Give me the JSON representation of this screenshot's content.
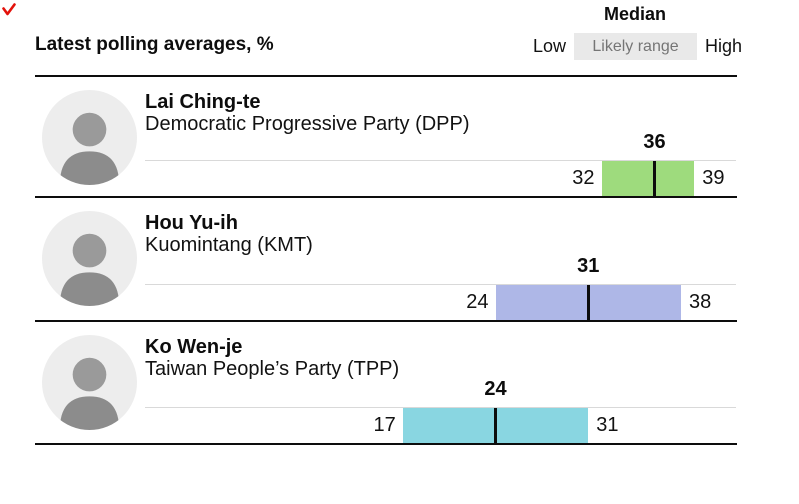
{
  "header": {
    "title": "Latest polling averages, %",
    "legend": {
      "median_label": "Median",
      "low_label": "Low",
      "range_label": "Likely range",
      "high_label": "High"
    }
  },
  "colors": {
    "brand_red": "#e3120b",
    "range_box_bg": "#e9e9e9",
    "divider": "#0d0d0d",
    "baseline_gray": "#d9d9d9",
    "dpp_green": "#9edb7d",
    "kmt_purple": "#aeb7e7",
    "tpp_cyan": "#89d6e1"
  },
  "chart_data": {
    "type": "bar",
    "title": "Latest polling averages, %",
    "unit": "%",
    "xlim": [
      0,
      42
    ],
    "grid": false,
    "legend_position": "top-right",
    "legend": [
      "Median",
      "Low",
      "Likely range",
      "High"
    ],
    "candidates": [
      {
        "name": "Lai Ching-te",
        "party": "Democratic Progressive Party (DPP)",
        "low": 32,
        "median": 36,
        "high": 39,
        "color": "#9edb7d"
      },
      {
        "name": "Hou Yu-ih",
        "party": "Kuomintang (KMT)",
        "low": 24,
        "median": 31,
        "high": 38,
        "color": "#aeb7e7"
      },
      {
        "name": "Ko Wen-je",
        "party": "Taiwan People’s Party (TPP)",
        "low": 17,
        "median": 24,
        "high": 31,
        "color": "#89d6e1"
      }
    ]
  }
}
